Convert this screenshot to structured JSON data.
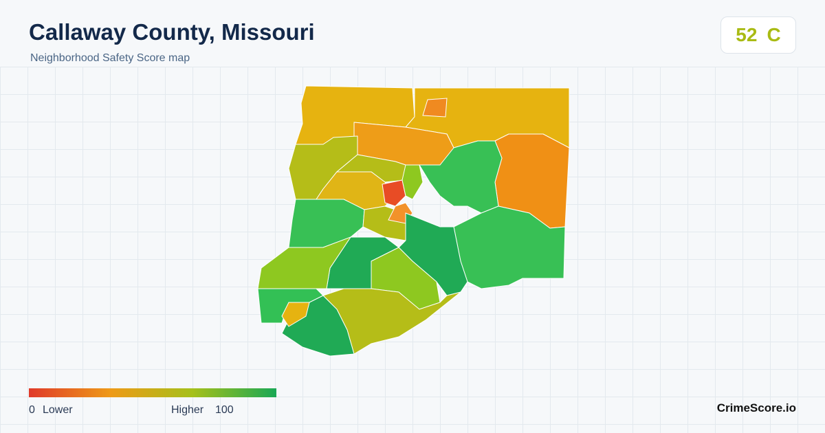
{
  "header": {
    "title": "Callaway County, Missouri",
    "subtitle": "Neighborhood Safety Score map",
    "score": 52,
    "grade": "C"
  },
  "legend": {
    "min": 0,
    "min_label": "Lower",
    "max_label": "Higher",
    "max": 100
  },
  "brand": "CrimeScore.io"
}
